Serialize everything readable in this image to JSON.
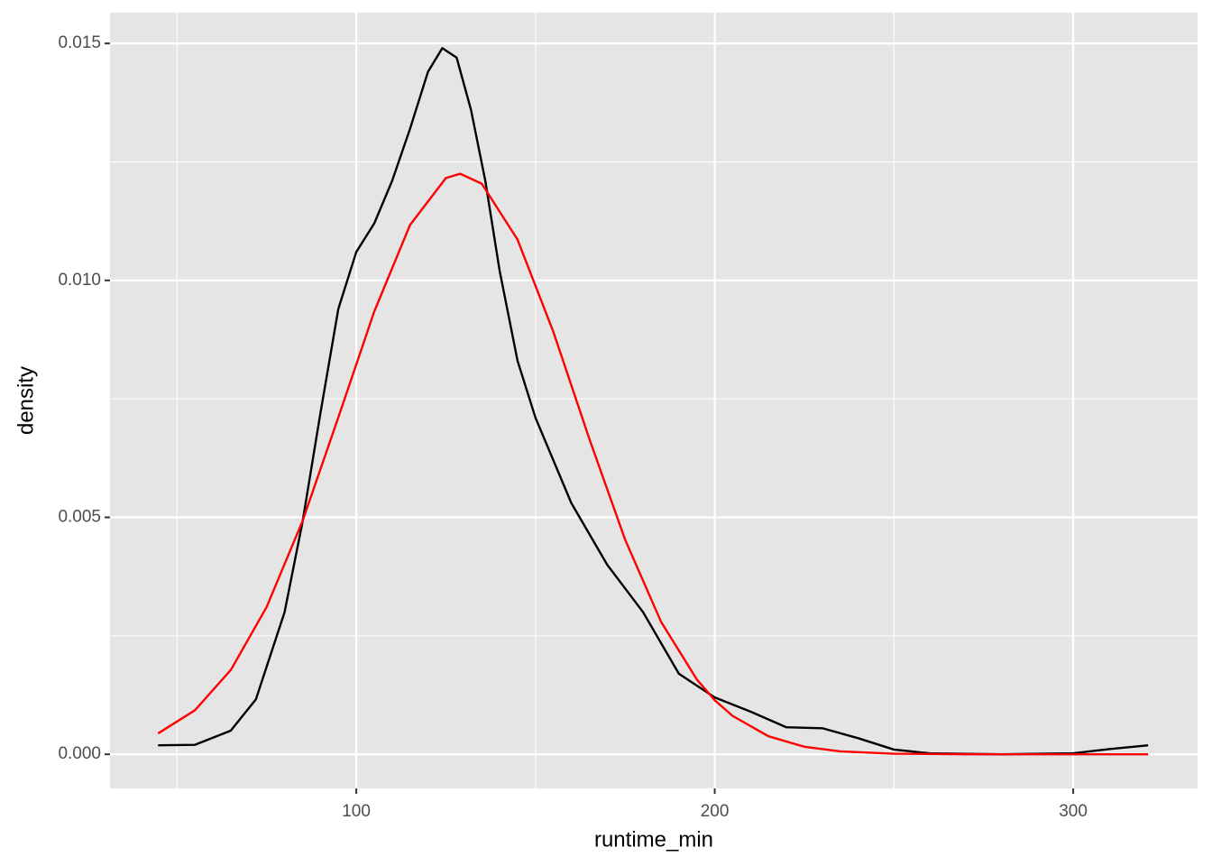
{
  "chart_data": {
    "type": "line",
    "x_label": "runtime_min",
    "y_label": "density",
    "xlim": [
      31.3,
      334.7
    ],
    "ylim": [
      -0.00072,
      0.01565
    ],
    "xticks": [
      100,
      200,
      300
    ],
    "yticks": [
      {
        "value": 0,
        "label": "0.000"
      },
      {
        "value": 0.005,
        "label": "0.005"
      },
      {
        "value": 0.01,
        "label": "0.010"
      },
      {
        "value": 0.015,
        "label": "0.015"
      }
    ],
    "x_minor_grid": [
      50,
      150,
      250
    ],
    "y_minor_grid": [
      0.0025,
      0.0075,
      0.0125
    ],
    "grid": true,
    "panel_color": "#e5e5e5",
    "series": [
      {
        "color": "#000000",
        "x": [
          44.7,
          55,
          65,
          72,
          80,
          85,
          90,
          95,
          100,
          105,
          110,
          115,
          120,
          124,
          128,
          132,
          136,
          140,
          145,
          150,
          160,
          170,
          180,
          190,
          200,
          210,
          220,
          230,
          240,
          250,
          260,
          280,
          300,
          310,
          320.9
        ],
        "values": [
          0.00019,
          0.0002,
          0.0005,
          0.00116,
          0.003,
          0.0049,
          0.0072,
          0.0094,
          0.0106,
          0.0112,
          0.0121,
          0.0132,
          0.0144,
          0.0149,
          0.0147,
          0.0136,
          0.0121,
          0.0102,
          0.0083,
          0.0071,
          0.0053,
          0.004,
          0.003,
          0.0017,
          0.0012,
          0.0009,
          0.00057,
          0.00055,
          0.00034,
          0.0001,
          2e-05,
          0,
          2e-05,
          0.00011,
          0.00019
        ]
      },
      {
        "color": "#ff0000",
        "x": [
          44.7,
          55,
          65,
          75,
          85,
          95,
          105,
          115,
          125,
          129,
          135,
          145,
          155,
          165,
          175,
          185,
          195,
          200,
          205,
          215,
          225,
          235,
          250,
          270,
          300,
          320.9
        ],
        "values": [
          0.00044,
          0.00093,
          0.00178,
          0.00311,
          0.00492,
          0.00711,
          0.00934,
          0.01117,
          0.01216,
          0.01225,
          0.01204,
          0.01086,
          0.00891,
          0.00666,
          0.00453,
          0.0028,
          0.00158,
          0.00114,
          0.00081,
          0.00038,
          0.00016,
          6.2e-05,
          1.25e-05,
          1e-06,
          0,
          0
        ]
      }
    ]
  }
}
